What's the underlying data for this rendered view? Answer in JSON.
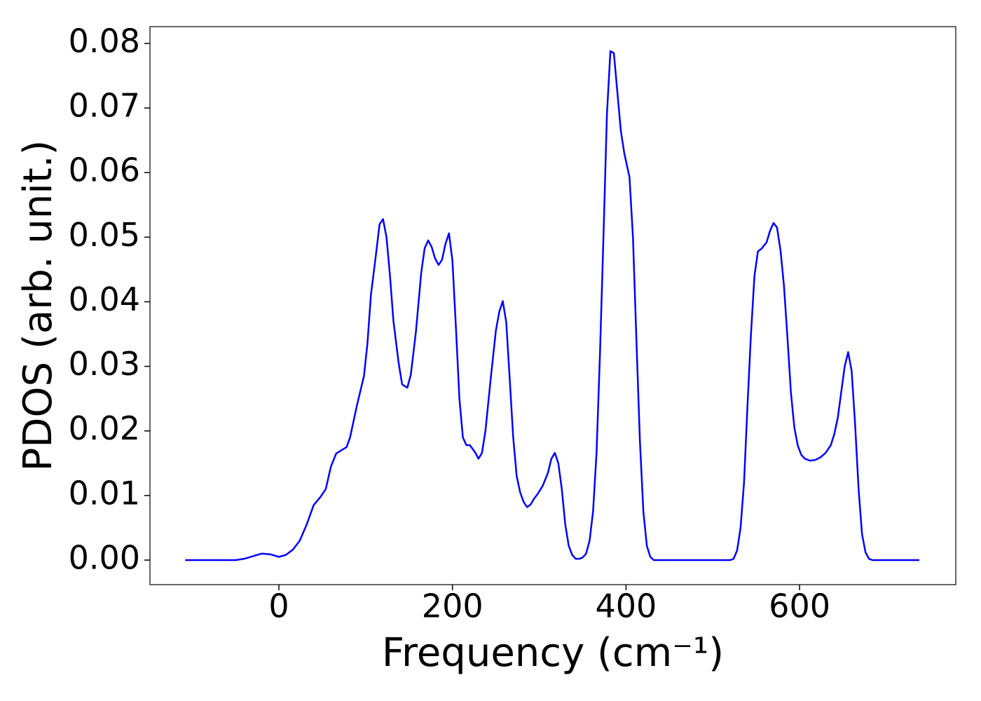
{
  "chart_data": {
    "type": "line",
    "xlabel": "Frequency (cm⁻¹)",
    "ylabel": "PDOS (arb. unit.)",
    "color": "#0000ff",
    "x": [
      -108,
      -50,
      -40,
      -30,
      -20,
      -10,
      0,
      8,
      16,
      24,
      32,
      40,
      48,
      54,
      60,
      66,
      72,
      78,
      82,
      90,
      98,
      102,
      106,
      112,
      116,
      120,
      124,
      128,
      132,
      138,
      142,
      148,
      152,
      158,
      164,
      168,
      172,
      176,
      180,
      184,
      188,
      192,
      196,
      200,
      204,
      208,
      212,
      216,
      220,
      226,
      230,
      234,
      238,
      244,
      250,
      254,
      258,
      262,
      266,
      270,
      274,
      278,
      282,
      286,
      290,
      294,
      298,
      304,
      310,
      314,
      318,
      322,
      326,
      330,
      334,
      338,
      342,
      346,
      350,
      354,
      358,
      362,
      366,
      370,
      374,
      378,
      382,
      386,
      390,
      394,
      398,
      404,
      408,
      412,
      416,
      420,
      424,
      428,
      432,
      520,
      524,
      528,
      532,
      536,
      540,
      544,
      548,
      552,
      556,
      562,
      566,
      570,
      574,
      578,
      582,
      586,
      590,
      594,
      598,
      602,
      606,
      612,
      618,
      624,
      630,
      636,
      640,
      644,
      648,
      652,
      656,
      660,
      664,
      668,
      672,
      676,
      680,
      684,
      738
    ],
    "values": [
      0,
      0,
      0.0002,
      0.0006,
      0.001,
      0.0009,
      0.0005,
      0.0008,
      0.0016,
      0.003,
      0.0055,
      0.0085,
      0.0098,
      0.011,
      0.0145,
      0.0165,
      0.017,
      0.0175,
      0.019,
      0.024,
      0.0285,
      0.0335,
      0.041,
      0.0475,
      0.052,
      0.0528,
      0.05,
      0.044,
      0.037,
      0.0305,
      0.0272,
      0.0267,
      0.0287,
      0.0355,
      0.0445,
      0.0483,
      0.0495,
      0.0485,
      0.0467,
      0.0457,
      0.0465,
      0.049,
      0.0506,
      0.0463,
      0.036,
      0.025,
      0.019,
      0.0178,
      0.0178,
      0.0167,
      0.0157,
      0.0166,
      0.02,
      0.028,
      0.0355,
      0.0385,
      0.0401,
      0.0368,
      0.028,
      0.019,
      0.013,
      0.0105,
      0.009,
      0.0082,
      0.0086,
      0.0095,
      0.0102,
      0.0115,
      0.0135,
      0.0157,
      0.0166,
      0.015,
      0.011,
      0.0055,
      0.0022,
      0.0008,
      0.0002,
      0.0002,
      0.0004,
      0.001,
      0.003,
      0.0075,
      0.0165,
      0.032,
      0.05,
      0.069,
      0.0788,
      0.0785,
      0.0725,
      0.0665,
      0.063,
      0.0593,
      0.05,
      0.034,
      0.0185,
      0.0075,
      0.0022,
      0.0005,
      0,
      0,
      0.0002,
      0.0015,
      0.005,
      0.012,
      0.024,
      0.035,
      0.044,
      0.0478,
      0.0482,
      0.0492,
      0.051,
      0.0522,
      0.0515,
      0.048,
      0.0425,
      0.0345,
      0.026,
      0.0205,
      0.0177,
      0.0163,
      0.0157,
      0.0154,
      0.0155,
      0.0159,
      0.0166,
      0.0178,
      0.0195,
      0.022,
      0.026,
      0.03,
      0.0322,
      0.0293,
      0.021,
      0.011,
      0.004,
      0.0012,
      0.0002,
      0,
      0
    ],
    "xlim": [
      -148.6,
      780
    ],
    "ylim": [
      -0.0038,
      0.0826
    ],
    "xticks": [
      0,
      200,
      400,
      600
    ],
    "yticks": [
      {
        "value": 0,
        "label": "0.00"
      },
      0.01,
      0.02,
      0.03,
      0.04,
      0.05,
      0.06,
      0.07,
      0.08
    ]
  }
}
